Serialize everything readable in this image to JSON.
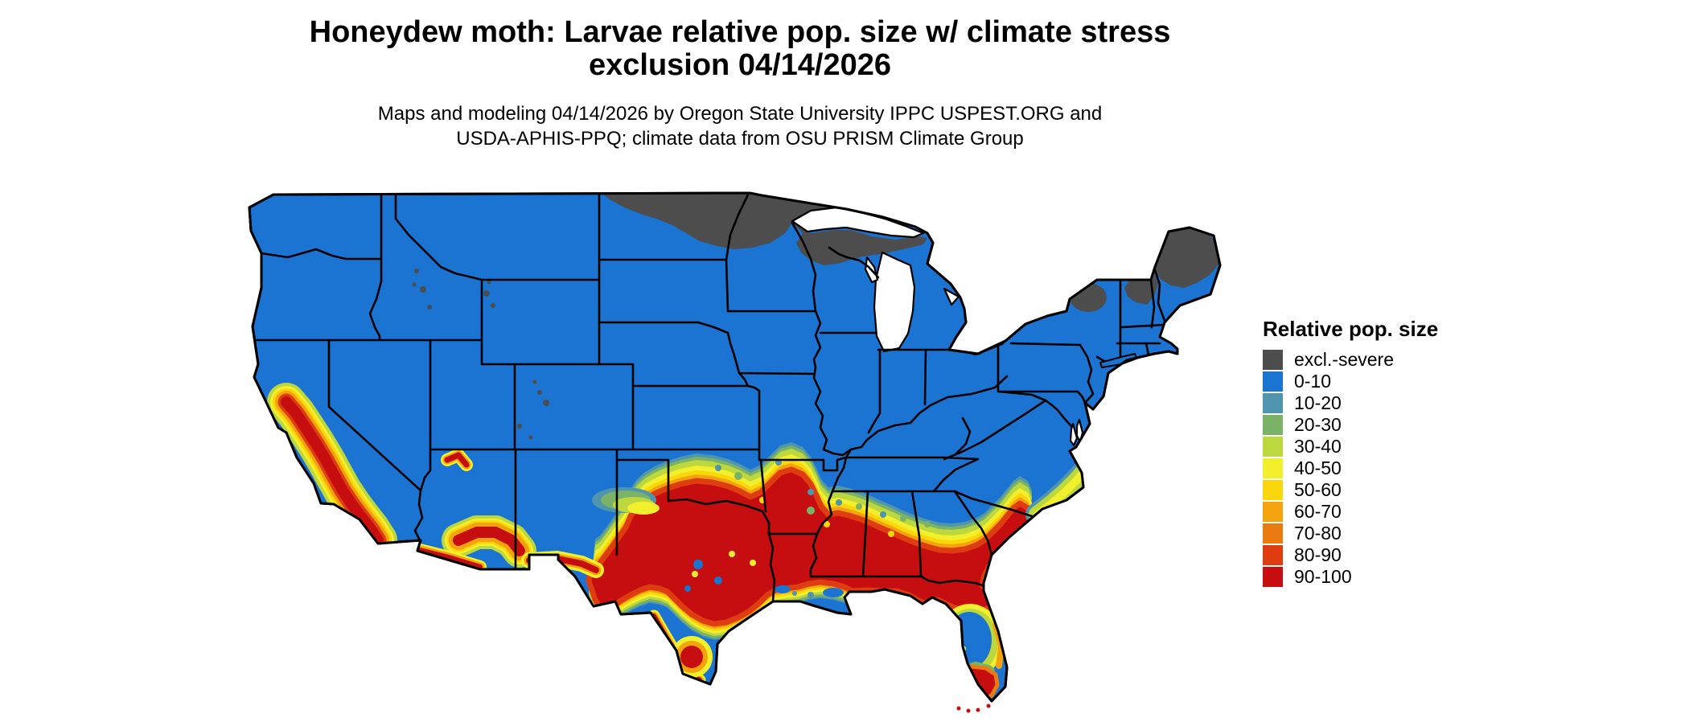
{
  "title": {
    "line1": "Honeydew moth: Larvae relative pop. size w/ climate stress",
    "line2": "exclusion 04/14/2026"
  },
  "subtitle": {
    "line1": "Maps and modeling 04/14/2026 by Oregon State University IPPC USPEST.ORG and",
    "line2": "USDA-APHIS-PPQ; climate data from OSU PRISM Climate Group"
  },
  "legend": {
    "title": "Relative pop. size",
    "entries": [
      {
        "key": "excl",
        "label": "excl.-severe",
        "color": "#4d4d4d"
      },
      {
        "key": "c0",
        "label": "0-10",
        "color": "#1b74d1"
      },
      {
        "key": "c10",
        "label": "10-20",
        "color": "#4e95ad"
      },
      {
        "key": "c20",
        "label": "20-30",
        "color": "#7ab368"
      },
      {
        "key": "c30",
        "label": "30-40",
        "color": "#bdd73e"
      },
      {
        "key": "c40",
        "label": "40-50",
        "color": "#f2ef2d"
      },
      {
        "key": "c50",
        "label": "50-60",
        "color": "#fbd60b"
      },
      {
        "key": "c60",
        "label": "60-70",
        "color": "#f2a30d"
      },
      {
        "key": "c70",
        "label": "70-80",
        "color": "#e97c10"
      },
      {
        "key": "c80",
        "label": "80-90",
        "color": "#de3d12"
      },
      {
        "key": "c90",
        "label": "90-100",
        "color": "#c60d10"
      }
    ]
  },
  "map": {
    "region": "Continental United States",
    "background_color": "#ffffff",
    "boundary_color": "#000000",
    "notes": [
      "excl.-severe (gray) across northern North Dakota, northern Minnesota, northern Wisconsin, upper Michigan, Adirondacks, northern New Hampshire/Vermont and most of Maine",
      "90-100 (red) across most of Texas, Oklahoma south, Louisiana, Arkansas south, Mississippi, Alabama, Georgia, coastal South Carolina and north Florida",
      "90-100 (red) along California's Central Valley and south coast, southern Arizona and the Rio Grande corridor",
      "0-10 (blue) over most northern, central and eastern states, south coastal Texas and central Florida",
      "graded 10-80 transition band between the blue north and red south",
      "red reappears at the southern tip of Florida and the Keys"
    ]
  }
}
